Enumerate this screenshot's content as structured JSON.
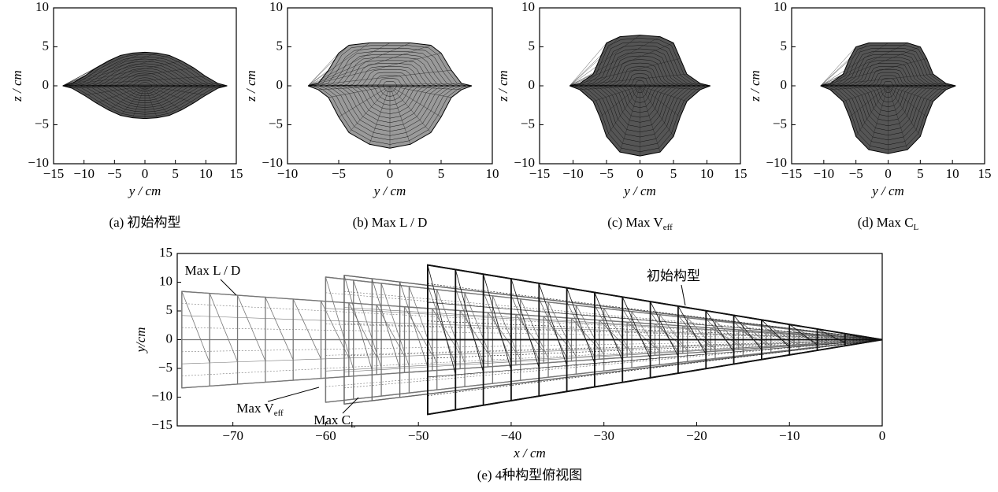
{
  "chart_data": [
    {
      "type": "mesh",
      "xlabel": "y / cm",
      "ylabel": "z / cm",
      "caption": "(a) 初始构型",
      "xlim": [
        -15,
        15
      ],
      "ylim": [
        -10,
        10
      ],
      "xticks": [
        {
          "value": -15,
          "label": "−15"
        },
        {
          "value": -10,
          "label": "−10"
        },
        {
          "value": -5,
          "label": "−5"
        },
        0,
        5,
        10,
        15
      ],
      "yticks": [
        {
          "value": -10,
          "label": "−10"
        },
        {
          "value": -5,
          "label": "−5"
        },
        0,
        5,
        10
      ],
      "x": [
        -13.5,
        -12,
        -10,
        -8,
        -6,
        -4,
        -2,
        0,
        2,
        4,
        6,
        8,
        10,
        12,
        13.5
      ],
      "upper": [
        0,
        0.3,
        1.2,
        2.3,
        3.2,
        3.9,
        4.2,
        4.3,
        4.2,
        3.9,
        3.2,
        2.3,
        1.2,
        0.3,
        0
      ],
      "lower": [
        0,
        -0.3,
        -1.2,
        -2.2,
        -3.1,
        -3.8,
        -4.1,
        -4.2,
        -4.1,
        -3.8,
        -3.1,
        -2.2,
        -1.2,
        -0.3,
        0
      ]
    },
    {
      "type": "mesh",
      "xlabel": "y / cm",
      "ylabel": "z / cm",
      "caption": "(b) Max L / D",
      "xlim": [
        -10,
        10
      ],
      "ylim": [
        -10,
        10
      ],
      "xticks": [
        {
          "value": -10,
          "label": "−10"
        },
        {
          "value": -5,
          "label": "−5"
        },
        0,
        5,
        10
      ],
      "yticks": [
        {
          "value": -10,
          "label": "−10"
        },
        {
          "value": -5,
          "label": "−5"
        },
        0,
        5,
        10
      ],
      "x": [
        -8,
        -7,
        -6,
        -5,
        -4,
        -2,
        0,
        2,
        4,
        5,
        6,
        7,
        8
      ],
      "upper": [
        0,
        0.3,
        2,
        4.2,
        5.2,
        5.5,
        5.5,
        5.5,
        5.2,
        4.2,
        2,
        0.3,
        0
      ],
      "lower": [
        0,
        -0.5,
        -1.5,
        -4,
        -6,
        -7.5,
        -8,
        -7.5,
        -6,
        -4,
        -1.5,
        -0.5,
        0
      ]
    },
    {
      "type": "mesh",
      "xlabel": "y / cm",
      "ylabel": "z / cm",
      "caption": {
        "text": "(c) Max V",
        "sub": "eff"
      },
      "xlim": [
        -15,
        15
      ],
      "ylim": [
        -10,
        10
      ],
      "xticks": [
        {
          "value": -15,
          "label": "−15"
        },
        {
          "value": -10,
          "label": "−10"
        },
        {
          "value": -5,
          "label": "−5"
        },
        0,
        5,
        10,
        15
      ],
      "yticks": [
        {
          "value": -10,
          "label": "−10"
        },
        {
          "value": -5,
          "label": "−5"
        },
        0,
        5,
        10
      ],
      "x": [
        -10.5,
        -9,
        -7,
        -6,
        -5,
        -3,
        0,
        3,
        5,
        6,
        7,
        9,
        10.5
      ],
      "upper": [
        0,
        0.3,
        1.5,
        3.5,
        5.5,
        6.3,
        6.5,
        6.3,
        5.5,
        3.5,
        1.5,
        0.3,
        0
      ],
      "lower": [
        0,
        -0.5,
        -2,
        -4,
        -6.5,
        -8.5,
        -9,
        -8.5,
        -6.5,
        -4,
        -2,
        -0.5,
        0
      ]
    },
    {
      "type": "mesh",
      "xlabel": "y / cm",
      "ylabel": "z / cm",
      "caption": {
        "text": "(d) Max C",
        "sub": "L"
      },
      "xlim": [
        -15,
        15
      ],
      "ylim": [
        -10,
        10
      ],
      "xticks": [
        {
          "value": -15,
          "label": "−15"
        },
        {
          "value": -10,
          "label": "−10"
        },
        {
          "value": -5,
          "label": "−5"
        },
        0,
        5,
        10,
        15
      ],
      "yticks": [
        {
          "value": -10,
          "label": "−10"
        },
        {
          "value": -5,
          "label": "−5"
        },
        0,
        5,
        10
      ],
      "x": [
        -10.5,
        -9,
        -7,
        -6,
        -5,
        -3,
        0,
        3,
        5,
        6,
        7,
        9,
        10.5
      ],
      "upper": [
        0,
        0.3,
        1.5,
        3.5,
        5,
        5.5,
        5.5,
        5.5,
        5,
        3.5,
        1.5,
        0.3,
        0
      ],
      "lower": [
        0,
        -0.5,
        -2,
        -4,
        -6.5,
        -8.2,
        -8.7,
        -8.2,
        -6.5,
        -4,
        -2,
        -0.5,
        0
      ]
    },
    {
      "type": "planform",
      "xlabel": "x / cm",
      "ylabel": "y/cm",
      "caption": "(e) 4种构型俯视图",
      "xlim": [
        -76,
        0
      ],
      "ylim": [
        -15,
        15
      ],
      "xticks": [
        {
          "value": -70,
          "label": "−70"
        },
        {
          "value": -60,
          "label": "−60"
        },
        {
          "value": -50,
          "label": "−50"
        },
        {
          "value": -40,
          "label": "−40"
        },
        {
          "value": -30,
          "label": "−30"
        },
        {
          "value": -20,
          "label": "−20"
        },
        {
          "value": -10,
          "label": "−10"
        },
        0
      ],
      "yticks": [
        {
          "value": -15,
          "label": "−15"
        },
        {
          "value": -10,
          "label": "−10"
        },
        {
          "value": -5,
          "label": "−5"
        },
        0,
        5,
        10,
        15
      ],
      "series": [
        {
          "name": "Max L / D",
          "color": "#777777",
          "x": [
            -75.5,
            0,
            -75.5
          ],
          "values": [
            8.4,
            0,
            -8.4
          ]
        },
        {
          "name": {
            "text": "Max V",
            "sub": "eff"
          },
          "color": "#777777",
          "x": [
            -60,
            0,
            -60
          ],
          "values": [
            10.9,
            0,
            -10.9
          ]
        },
        {
          "name": {
            "text": "Max C",
            "sub": "L"
          },
          "color": "#666666",
          "x": [
            -58,
            0,
            -58
          ],
          "values": [
            11.2,
            0,
            -11.2
          ]
        },
        {
          "name": "初始构型",
          "color": "#111111",
          "x": [
            -49,
            0,
            -49
          ],
          "values": [
            13,
            0,
            -13
          ]
        }
      ]
    }
  ]
}
